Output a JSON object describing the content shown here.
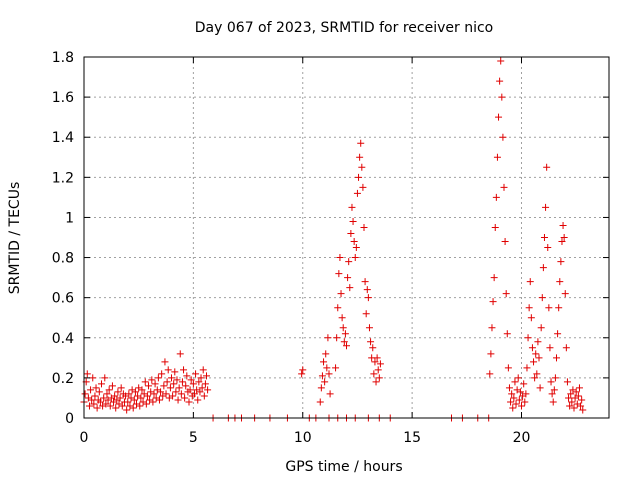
{
  "chart_data": {
    "type": "scatter",
    "title": "Day 067 of 2023, SRMTID for receiver nico",
    "xlabel": "GPS time / hours",
    "ylabel": "SRMTID / TECUs",
    "xlim": [
      0,
      24
    ],
    "ylim": [
      0,
      1.8
    ],
    "xticks": [
      0,
      5,
      10,
      15,
      20
    ],
    "xtick_labels": [
      "0",
      "5",
      "10",
      "15",
      "20"
    ],
    "yticks": [
      0,
      0.2,
      0.4,
      0.6,
      0.8,
      1.0,
      1.2,
      1.4,
      1.6,
      1.8
    ],
    "ytick_labels": [
      "0",
      "0.2",
      "0.4",
      "0.6",
      "0.8",
      "1",
      "1.2",
      "1.4",
      "1.6",
      "1.8"
    ],
    "grid": true,
    "marker": "+",
    "color": "#e00000",
    "series": [
      {
        "name": "SRMTID",
        "points": [
          [
            0.0,
            0.08
          ],
          [
            0.05,
            0.12
          ],
          [
            0.1,
            0.18
          ],
          [
            0.15,
            0.22
          ],
          [
            0.2,
            0.1
          ],
          [
            0.25,
            0.06
          ],
          [
            0.3,
            0.14
          ],
          [
            0.35,
            0.09
          ],
          [
            0.4,
            0.2
          ],
          [
            0.45,
            0.07
          ],
          [
            0.5,
            0.11
          ],
          [
            0.55,
            0.15
          ],
          [
            0.6,
            0.05
          ],
          [
            0.65,
            0.09
          ],
          [
            0.7,
            0.13
          ],
          [
            0.75,
            0.08
          ],
          [
            0.8,
            0.17
          ],
          [
            0.85,
            0.06
          ],
          [
            0.9,
            0.1
          ],
          [
            0.95,
            0.2
          ],
          [
            1.0,
            0.07
          ],
          [
            1.05,
            0.12
          ],
          [
            1.1,
            0.09
          ],
          [
            1.15,
            0.14
          ],
          [
            1.2,
            0.06
          ],
          [
            1.25,
            0.1
          ],
          [
            1.3,
            0.16
          ],
          [
            1.35,
            0.08
          ],
          [
            1.4,
            0.11
          ],
          [
            1.45,
            0.05
          ],
          [
            1.5,
            0.09
          ],
          [
            1.55,
            0.13
          ],
          [
            1.6,
            0.07
          ],
          [
            1.65,
            0.1
          ],
          [
            1.7,
            0.15
          ],
          [
            1.75,
            0.06
          ],
          [
            1.8,
            0.12
          ],
          [
            1.85,
            0.08
          ],
          [
            1.9,
            0.11
          ],
          [
            1.95,
            0.04
          ],
          [
            2.0,
            0.08
          ],
          [
            2.05,
            0.12
          ],
          [
            2.1,
            0.06
          ],
          [
            2.15,
            0.1
          ],
          [
            2.2,
            0.14
          ],
          [
            2.25,
            0.05
          ],
          [
            2.3,
            0.09
          ],
          [
            2.35,
            0.13
          ],
          [
            2.4,
            0.07
          ],
          [
            2.45,
            0.11
          ],
          [
            2.5,
            0.15
          ],
          [
            2.55,
            0.06
          ],
          [
            2.6,
            0.1
          ],
          [
            2.65,
            0.14
          ],
          [
            2.7,
            0.08
          ],
          [
            2.75,
            0.12
          ],
          [
            2.8,
            0.18
          ],
          [
            2.85,
            0.07
          ],
          [
            2.9,
            0.11
          ],
          [
            2.95,
            0.16
          ],
          [
            3.0,
            0.09
          ],
          [
            3.05,
            0.13
          ],
          [
            3.1,
            0.19
          ],
          [
            3.15,
            0.08
          ],
          [
            3.2,
            0.12
          ],
          [
            3.25,
            0.17
          ],
          [
            3.3,
            0.1
          ],
          [
            3.35,
            0.14
          ],
          [
            3.4,
            0.2
          ],
          [
            3.45,
            0.09
          ],
          [
            3.5,
            0.13
          ],
          [
            3.55,
            0.22
          ],
          [
            3.6,
            0.11
          ],
          [
            3.65,
            0.16
          ],
          [
            3.7,
            0.28
          ],
          [
            3.75,
            0.12
          ],
          [
            3.8,
            0.18
          ],
          [
            3.85,
            0.24
          ],
          [
            3.9,
            0.1
          ],
          [
            3.95,
            0.15
          ],
          [
            4.0,
            0.2
          ],
          [
            4.05,
            0.11
          ],
          [
            4.1,
            0.17
          ],
          [
            4.15,
            0.23
          ],
          [
            4.2,
            0.13
          ],
          [
            4.25,
            0.19
          ],
          [
            4.3,
            0.09
          ],
          [
            4.35,
            0.15
          ],
          [
            4.4,
            0.32
          ],
          [
            4.45,
            0.12
          ],
          [
            4.5,
            0.18
          ],
          [
            4.55,
            0.24
          ],
          [
            4.6,
            0.1
          ],
          [
            4.65,
            0.16
          ],
          [
            4.7,
            0.21
          ],
          [
            4.75,
            0.13
          ],
          [
            4.8,
            0.08
          ],
          [
            4.85,
            0.14
          ],
          [
            4.9,
            0.19
          ],
          [
            4.95,
            0.11
          ],
          [
            5.0,
            0.17
          ],
          [
            5.05,
            0.12
          ],
          [
            5.1,
            0.22
          ],
          [
            5.15,
            0.14
          ],
          [
            5.2,
            0.09
          ],
          [
            5.25,
            0.18
          ],
          [
            5.3,
            0.13
          ],
          [
            5.35,
            0.2
          ],
          [
            5.4,
            0.15
          ],
          [
            5.45,
            0.24
          ],
          [
            5.5,
            0.11
          ],
          [
            5.55,
            0.17
          ],
          [
            5.6,
            0.21
          ],
          [
            5.65,
            0.14
          ],
          [
            5.9,
            0.0
          ],
          [
            6.6,
            0.0
          ],
          [
            6.9,
            0.0
          ],
          [
            7.2,
            0.0
          ],
          [
            7.8,
            0.0
          ],
          [
            8.5,
            0.0
          ],
          [
            9.3,
            0.0
          ],
          [
            10.3,
            0.0
          ],
          [
            10.6,
            0.0
          ],
          [
            11.2,
            0.0
          ],
          [
            11.6,
            0.0
          ],
          [
            12.0,
            0.0
          ],
          [
            12.4,
            0.0
          ],
          [
            13.0,
            0.0
          ],
          [
            13.5,
            0.0
          ],
          [
            14.0,
            0.0
          ],
          [
            16.8,
            0.0
          ],
          [
            17.3,
            0.0
          ],
          [
            18.0,
            0.0
          ],
          [
            18.5,
            0.0
          ],
          [
            9.95,
            0.22
          ],
          [
            10.0,
            0.24
          ],
          [
            10.8,
            0.08
          ],
          [
            10.85,
            0.15
          ],
          [
            10.9,
            0.21
          ],
          [
            10.95,
            0.28
          ],
          [
            11.0,
            0.18
          ],
          [
            11.05,
            0.32
          ],
          [
            11.1,
            0.25
          ],
          [
            11.15,
            0.4
          ],
          [
            11.2,
            0.22
          ],
          [
            11.25,
            0.12
          ],
          [
            11.5,
            0.25
          ],
          [
            11.55,
            0.4
          ],
          [
            11.6,
            0.55
          ],
          [
            11.65,
            0.72
          ],
          [
            11.7,
            0.8
          ],
          [
            11.75,
            0.62
          ],
          [
            11.8,
            0.5
          ],
          [
            11.85,
            0.45
          ],
          [
            11.9,
            0.38
          ],
          [
            11.95,
            0.42
          ],
          [
            12.0,
            0.36
          ],
          [
            12.05,
            0.7
          ],
          [
            12.1,
            0.78
          ],
          [
            12.15,
            0.65
          ],
          [
            12.2,
            0.92
          ],
          [
            12.25,
            1.05
          ],
          [
            12.3,
            0.98
          ],
          [
            12.35,
            0.88
          ],
          [
            12.4,
            0.8
          ],
          [
            12.45,
            0.85
          ],
          [
            12.5,
            1.12
          ],
          [
            12.55,
            1.2
          ],
          [
            12.6,
            1.3
          ],
          [
            12.65,
            1.37
          ],
          [
            12.7,
            1.25
          ],
          [
            12.75,
            1.15
          ],
          [
            12.8,
            0.95
          ],
          [
            12.85,
            0.68
          ],
          [
            12.9,
            0.52
          ],
          [
            12.95,
            0.64
          ],
          [
            13.0,
            0.6
          ],
          [
            13.05,
            0.45
          ],
          [
            13.1,
            0.38
          ],
          [
            13.15,
            0.3
          ],
          [
            13.2,
            0.35
          ],
          [
            13.25,
            0.22
          ],
          [
            13.3,
            0.28
          ],
          [
            13.35,
            0.18
          ],
          [
            13.4,
            0.3
          ],
          [
            13.45,
            0.24
          ],
          [
            13.5,
            0.2
          ],
          [
            13.55,
            0.27
          ],
          [
            18.55,
            0.22
          ],
          [
            18.6,
            0.32
          ],
          [
            18.65,
            0.45
          ],
          [
            18.7,
            0.58
          ],
          [
            18.75,
            0.7
          ],
          [
            18.8,
            0.95
          ],
          [
            18.85,
            1.1
          ],
          [
            18.9,
            1.3
          ],
          [
            18.95,
            1.5
          ],
          [
            19.0,
            1.68
          ],
          [
            19.05,
            1.78
          ],
          [
            19.1,
            1.6
          ],
          [
            19.15,
            1.4
          ],
          [
            19.2,
            1.15
          ],
          [
            19.25,
            0.88
          ],
          [
            19.3,
            0.62
          ],
          [
            19.35,
            0.42
          ],
          [
            19.4,
            0.25
          ],
          [
            19.45,
            0.15
          ],
          [
            19.5,
            0.08
          ],
          [
            19.55,
            0.12
          ],
          [
            19.6,
            0.05
          ],
          [
            19.65,
            0.1
          ],
          [
            19.7,
            0.18
          ],
          [
            19.75,
            0.07
          ],
          [
            19.8,
            0.14
          ],
          [
            19.85,
            0.2
          ],
          [
            19.9,
            0.09
          ],
          [
            19.95,
            0.13
          ],
          [
            20.0,
            0.06
          ],
          [
            20.05,
            0.11
          ],
          [
            20.1,
            0.17
          ],
          [
            20.15,
            0.08
          ],
          [
            20.2,
            0.12
          ],
          [
            20.25,
            0.25
          ],
          [
            20.3,
            0.4
          ],
          [
            20.35,
            0.55
          ],
          [
            20.4,
            0.68
          ],
          [
            20.45,
            0.5
          ],
          [
            20.5,
            0.35
          ],
          [
            20.55,
            0.28
          ],
          [
            20.6,
            0.2
          ],
          [
            20.65,
            0.32
          ],
          [
            20.7,
            0.22
          ],
          [
            20.75,
            0.38
          ],
          [
            20.8,
            0.3
          ],
          [
            20.85,
            0.15
          ],
          [
            20.9,
            0.45
          ],
          [
            20.95,
            0.6
          ],
          [
            21.0,
            0.75
          ],
          [
            21.05,
            0.9
          ],
          [
            21.1,
            1.05
          ],
          [
            21.15,
            1.25
          ],
          [
            21.2,
            0.85
          ],
          [
            21.25,
            0.55
          ],
          [
            21.3,
            0.35
          ],
          [
            21.35,
            0.18
          ],
          [
            21.4,
            0.12
          ],
          [
            21.45,
            0.08
          ],
          [
            21.5,
            0.14
          ],
          [
            21.55,
            0.2
          ],
          [
            21.6,
            0.3
          ],
          [
            21.65,
            0.42
          ],
          [
            21.7,
            0.55
          ],
          [
            21.75,
            0.68
          ],
          [
            21.8,
            0.78
          ],
          [
            21.85,
            0.88
          ],
          [
            21.9,
            0.96
          ],
          [
            21.95,
            0.9
          ],
          [
            22.0,
            0.62
          ],
          [
            22.05,
            0.35
          ],
          [
            22.1,
            0.18
          ],
          [
            22.15,
            0.1
          ],
          [
            22.2,
            0.06
          ],
          [
            22.25,
            0.12
          ],
          [
            22.3,
            0.08
          ],
          [
            22.35,
            0.14
          ],
          [
            22.4,
            0.05
          ],
          [
            22.45,
            0.1
          ],
          [
            22.5,
            0.13
          ],
          [
            22.55,
            0.07
          ],
          [
            22.6,
            0.11
          ],
          [
            22.65,
            0.15
          ],
          [
            22.7,
            0.06
          ],
          [
            22.75,
            0.09
          ],
          [
            22.8,
            0.04
          ]
        ]
      }
    ]
  }
}
